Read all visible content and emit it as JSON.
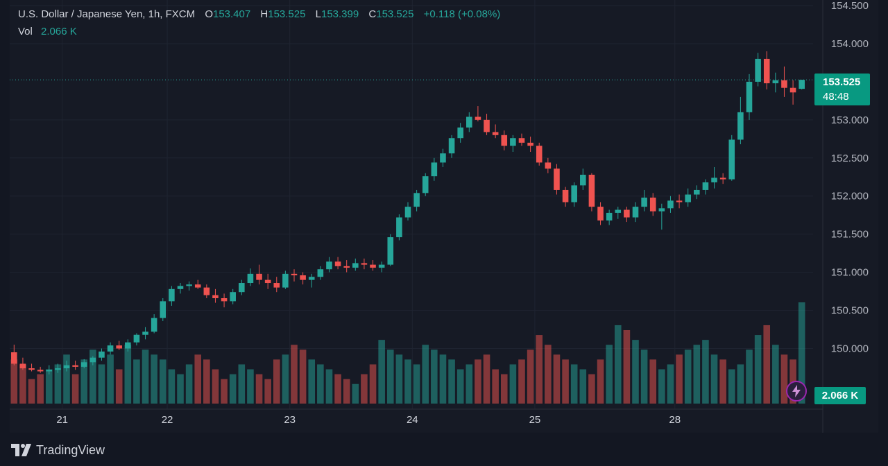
{
  "legend": {
    "symbol": "U.S. Dollar / Japanese Yen, 1h, FXCM",
    "open_label": "O",
    "open": "153.407",
    "high_label": "H",
    "high": "153.525",
    "low_label": "L",
    "low": "153.399",
    "close_label": "C",
    "close": "153.525",
    "change": "+0.118 (+0.08%)",
    "vol_label": "Vol",
    "vol_value": "2.066 K"
  },
  "price_tag": {
    "price": "153.525",
    "countdown": "48:48"
  },
  "volume_tag": "2.066 K",
  "brand": "TradingView",
  "colors": {
    "up": "#26a69a",
    "down": "#ef5350",
    "background": "#131722",
    "accent_tag": "#089981"
  },
  "icons": [
    "lightning-icon",
    "tradingview-logo"
  ],
  "chart_data": {
    "type": "candlestick",
    "title": "U.S. Dollar / Japanese Yen, 1h, FXCM",
    "ylim": [
      149.75,
      154.5
    ],
    "y_ticks": [
      "154.500",
      "154.000",
      "153.000",
      "152.500",
      "152.000",
      "151.500",
      "151.000",
      "150.500",
      "150.000"
    ],
    "x_ticks": [
      "21",
      "22",
      "23",
      "24",
      "25",
      "28"
    ],
    "x_tick_slot": [
      5.5,
      17.5,
      31.5,
      45.5,
      59.5,
      75.5
    ],
    "last_price": 153.525,
    "ohlc": [
      [
        149.95,
        150.05,
        149.78,
        149.8
      ],
      [
        149.8,
        149.88,
        149.72,
        149.74
      ],
      [
        149.74,
        149.8,
        149.7,
        149.72
      ],
      [
        149.72,
        149.76,
        149.68,
        149.7
      ],
      [
        149.7,
        149.78,
        149.66,
        149.72
      ],
      [
        149.72,
        149.8,
        149.68,
        149.74
      ],
      [
        149.74,
        149.84,
        149.7,
        149.78
      ],
      [
        149.78,
        149.84,
        149.72,
        149.76
      ],
      [
        149.76,
        149.86,
        149.74,
        149.82
      ],
      [
        149.82,
        149.9,
        149.78,
        149.88
      ],
      [
        149.88,
        150.0,
        149.84,
        149.96
      ],
      [
        149.96,
        150.08,
        149.92,
        150.04
      ],
      [
        150.04,
        150.1,
        149.98,
        150.0
      ],
      [
        150.0,
        150.12,
        149.96,
        150.08
      ],
      [
        150.08,
        150.2,
        150.04,
        150.18
      ],
      [
        150.18,
        150.28,
        150.12,
        150.22
      ],
      [
        150.22,
        150.45,
        150.2,
        150.4
      ],
      [
        150.4,
        150.66,
        150.36,
        150.62
      ],
      [
        150.62,
        150.82,
        150.56,
        150.78
      ],
      [
        150.78,
        150.86,
        150.72,
        150.82
      ],
      [
        150.82,
        150.88,
        150.76,
        150.84
      ],
      [
        150.84,
        150.9,
        150.78,
        150.8
      ],
      [
        150.8,
        150.84,
        150.66,
        150.7
      ],
      [
        150.7,
        150.78,
        150.6,
        150.66
      ],
      [
        150.66,
        150.72,
        150.54,
        150.62
      ],
      [
        150.62,
        150.78,
        150.58,
        150.74
      ],
      [
        150.74,
        150.9,
        150.7,
        150.86
      ],
      [
        150.86,
        151.05,
        150.82,
        150.98
      ],
      [
        150.98,
        151.1,
        150.84,
        150.9
      ],
      [
        150.9,
        150.98,
        150.78,
        150.86
      ],
      [
        150.86,
        150.94,
        150.74,
        150.8
      ],
      [
        150.8,
        151.02,
        150.78,
        150.98
      ],
      [
        150.98,
        151.04,
        150.88,
        150.96
      ],
      [
        150.96,
        151.0,
        150.84,
        150.9
      ],
      [
        150.9,
        150.98,
        150.8,
        150.94
      ],
      [
        150.94,
        151.08,
        150.9,
        151.04
      ],
      [
        151.04,
        151.2,
        151.0,
        151.14
      ],
      [
        151.14,
        151.2,
        151.04,
        151.08
      ],
      [
        151.08,
        151.16,
        151.0,
        151.06
      ],
      [
        151.06,
        151.18,
        151.02,
        151.12
      ],
      [
        151.12,
        151.18,
        151.04,
        151.1
      ],
      [
        151.1,
        151.16,
        151.02,
        151.06
      ],
      [
        151.06,
        151.14,
        151.0,
        151.1
      ],
      [
        151.1,
        151.5,
        151.08,
        151.46
      ],
      [
        151.46,
        151.76,
        151.42,
        151.72
      ],
      [
        151.72,
        151.92,
        151.68,
        151.86
      ],
      [
        151.86,
        152.08,
        151.8,
        152.04
      ],
      [
        152.04,
        152.3,
        152.0,
        152.26
      ],
      [
        152.26,
        152.5,
        152.2,
        152.44
      ],
      [
        152.44,
        152.62,
        152.38,
        152.56
      ],
      [
        152.56,
        152.8,
        152.5,
        152.76
      ],
      [
        152.76,
        152.96,
        152.7,
        152.9
      ],
      [
        152.9,
        153.1,
        152.84,
        153.04
      ],
      [
        153.04,
        153.18,
        152.98,
        153.0
      ],
      [
        153.0,
        153.08,
        152.8,
        152.84
      ],
      [
        152.84,
        152.94,
        152.76,
        152.8
      ],
      [
        152.8,
        152.86,
        152.6,
        152.66
      ],
      [
        152.66,
        152.8,
        152.58,
        152.76
      ],
      [
        152.76,
        152.82,
        152.66,
        152.7
      ],
      [
        152.7,
        152.78,
        152.58,
        152.66
      ],
      [
        152.66,
        152.7,
        152.4,
        152.44
      ],
      [
        152.44,
        152.5,
        152.3,
        152.36
      ],
      [
        152.36,
        152.42,
        152.02,
        152.08
      ],
      [
        152.08,
        152.12,
        151.86,
        151.92
      ],
      [
        151.92,
        152.18,
        151.86,
        152.14
      ],
      [
        152.14,
        152.36,
        152.08,
        152.28
      ],
      [
        152.28,
        152.3,
        151.8,
        151.86
      ],
      [
        151.86,
        151.92,
        151.62,
        151.68
      ],
      [
        151.68,
        151.82,
        151.62,
        151.78
      ],
      [
        151.78,
        151.86,
        151.7,
        151.82
      ],
      [
        151.82,
        151.86,
        151.66,
        151.72
      ],
      [
        151.72,
        151.92,
        151.66,
        151.86
      ],
      [
        151.86,
        152.08,
        151.8,
        151.98
      ],
      [
        151.98,
        152.04,
        151.74,
        151.8
      ],
      [
        151.8,
        151.9,
        151.56,
        151.84
      ],
      [
        151.84,
        152.0,
        151.78,
        151.94
      ],
      [
        151.94,
        152.02,
        151.84,
        151.92
      ],
      [
        151.92,
        152.1,
        151.86,
        152.02
      ],
      [
        152.02,
        152.14,
        151.96,
        152.08
      ],
      [
        152.08,
        152.22,
        152.02,
        152.18
      ],
      [
        152.18,
        152.38,
        152.1,
        152.24
      ],
      [
        152.24,
        152.3,
        152.16,
        152.22
      ],
      [
        152.22,
        152.8,
        152.2,
        152.74
      ],
      [
        152.74,
        153.3,
        152.68,
        153.1
      ],
      [
        153.1,
        153.6,
        153.0,
        153.5
      ],
      [
        153.5,
        153.88,
        153.44,
        153.8
      ],
      [
        153.8,
        153.9,
        153.4,
        153.48
      ],
      [
        153.48,
        153.62,
        153.36,
        153.52
      ],
      [
        153.52,
        153.7,
        153.3,
        153.42
      ],
      [
        153.42,
        153.52,
        153.2,
        153.36
      ],
      [
        153.407,
        153.525,
        153.399,
        153.525
      ]
    ],
    "volume": [
      0.9,
      0.8,
      0.5,
      0.6,
      0.7,
      0.8,
      1.0,
      0.6,
      0.9,
      1.1,
      0.8,
      1.0,
      0.7,
      1.2,
      0.9,
      1.1,
      1.0,
      0.9,
      0.7,
      0.6,
      0.8,
      1.0,
      0.9,
      0.7,
      0.5,
      0.6,
      0.8,
      0.7,
      0.6,
      0.5,
      0.9,
      1.0,
      1.2,
      1.1,
      0.9,
      0.8,
      0.7,
      0.6,
      0.5,
      0.4,
      0.6,
      0.8,
      1.3,
      1.1,
      1.0,
      0.9,
      0.8,
      1.2,
      1.1,
      1.0,
      0.9,
      0.7,
      0.8,
      0.9,
      1.0,
      0.7,
      0.6,
      0.8,
      0.9,
      1.1,
      1.4,
      1.2,
      1.0,
      0.9,
      0.8,
      0.7,
      0.6,
      0.9,
      1.2,
      1.6,
      1.5,
      1.3,
      1.1,
      0.9,
      0.7,
      0.8,
      1.0,
      1.1,
      1.2,
      1.3,
      1.0,
      0.9,
      0.7,
      0.8,
      1.1,
      1.4,
      1.6,
      1.2,
      1.0,
      0.9,
      2.066
    ]
  }
}
